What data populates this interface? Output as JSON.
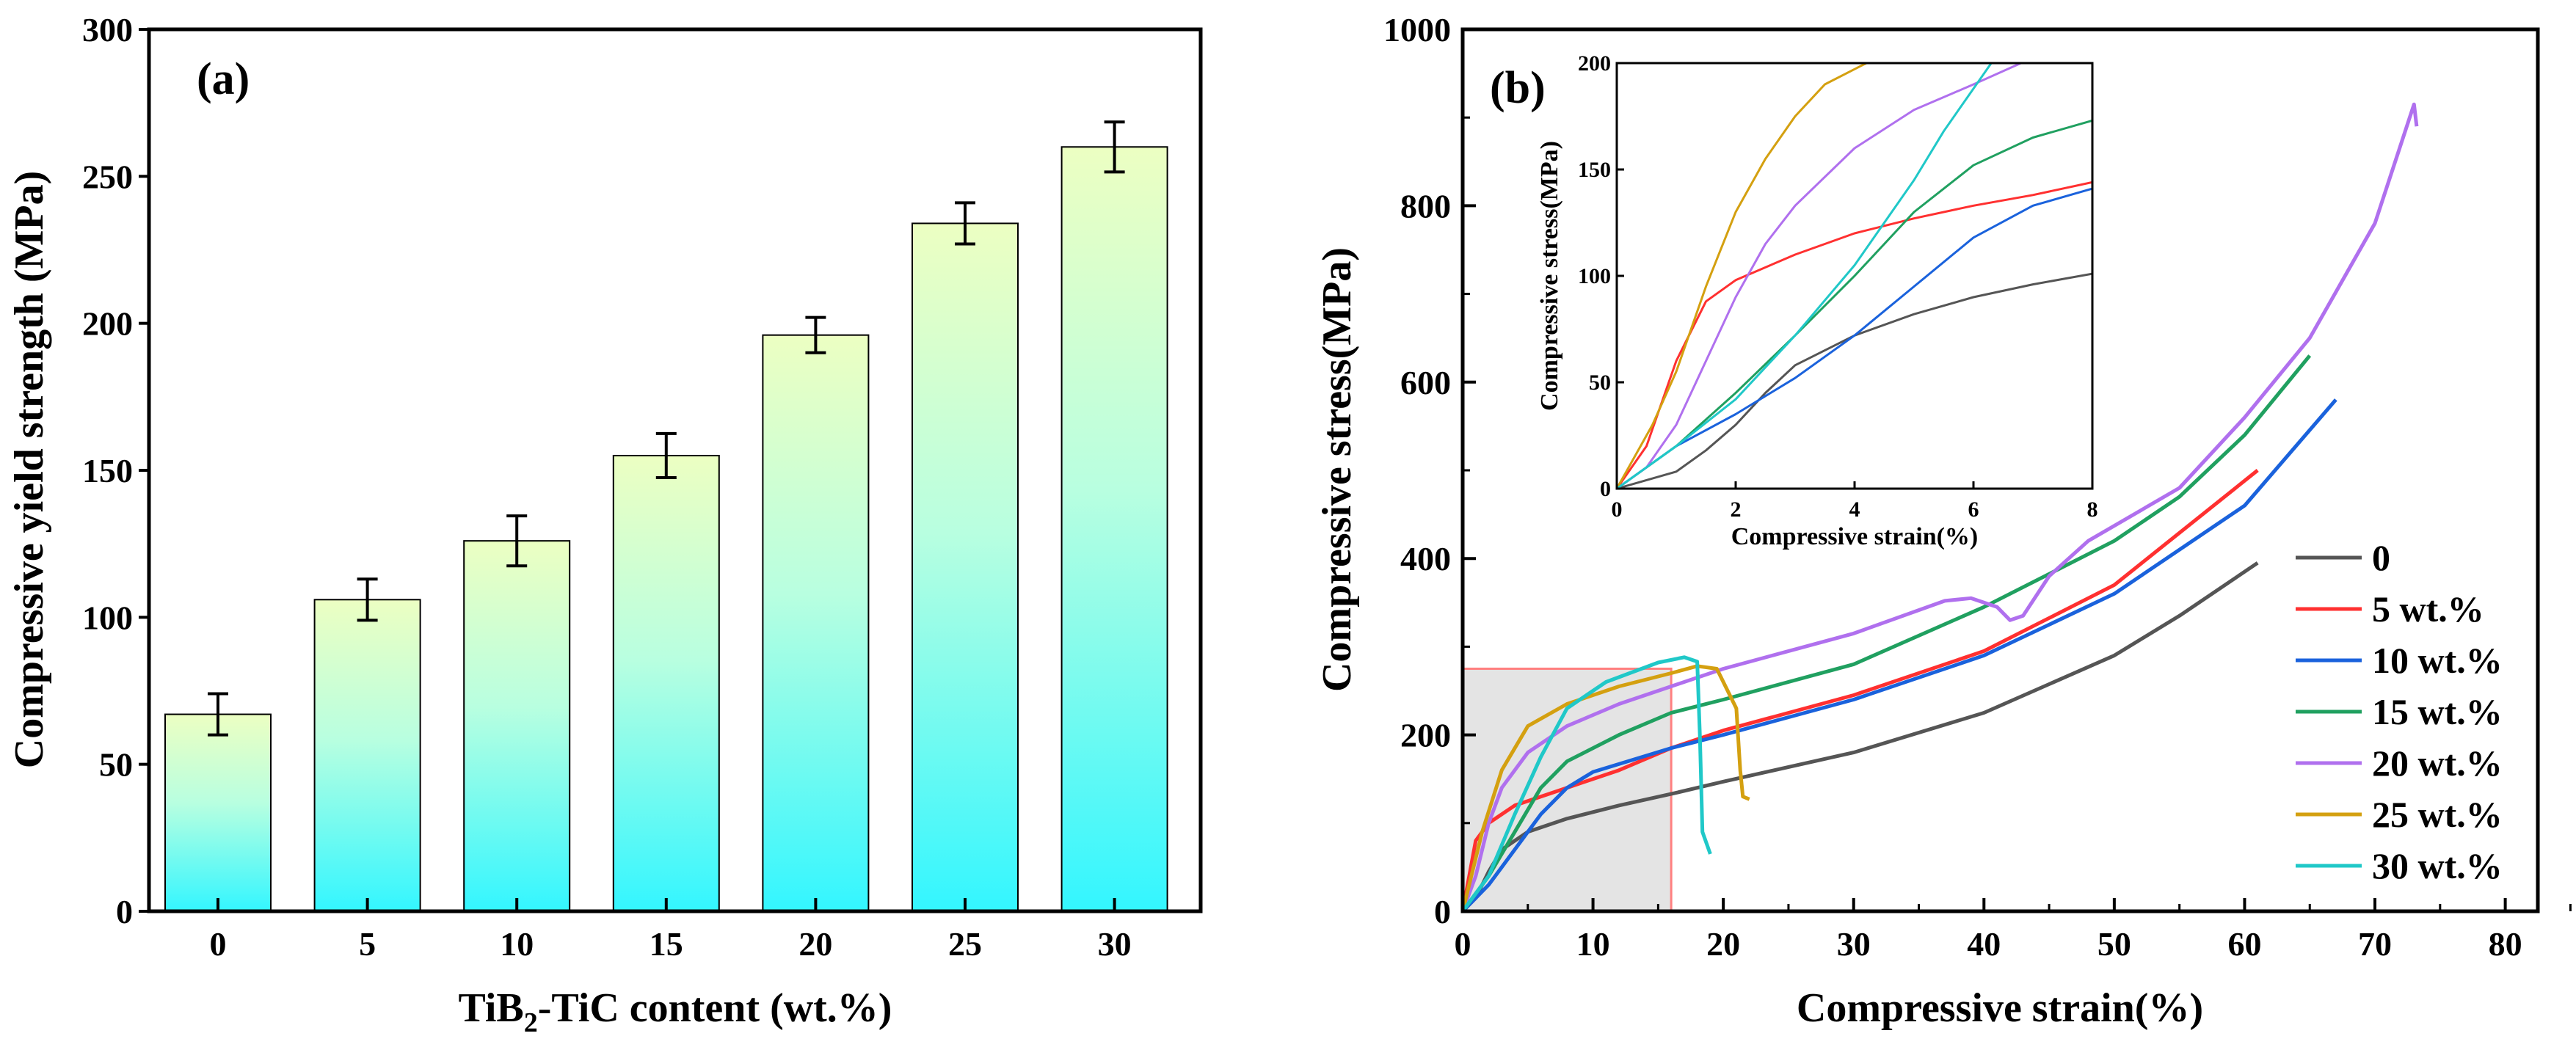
{
  "chart_data": [
    {
      "type": "bar",
      "panel_label": "(a)",
      "title": "",
      "xlabel_parts": [
        "TiB",
        "2",
        "-TiC content (wt.%)"
      ],
      "xlabel": "TiB2-TiC content (wt.%)",
      "ylabel": "Compressive yield strength (MPa)",
      "categories": [
        "0",
        "5",
        "10",
        "15",
        "20",
        "25",
        "30"
      ],
      "values": [
        67,
        106,
        126,
        155,
        196,
        234,
        260
      ],
      "errors": [
        7,
        7,
        8.5,
        7.5,
        6,
        7,
        8.5
      ],
      "ylim": [
        0,
        300
      ],
      "yticks": [
        "0",
        "50",
        "100",
        "150",
        "200",
        "250",
        "300"
      ],
      "grid": false,
      "colors": {
        "bar_top": "#ecffc2",
        "bar_mid": "#b8ffe0",
        "bar_bottom": "#33f6ff"
      }
    },
    {
      "type": "line",
      "panel_label": "(b)",
      "xlabel": "Compressive strain(%)",
      "ylabel": "Compressive stress(MPa)",
      "xlim": [
        0,
        82.5
      ],
      "ylim": [
        0,
        1000
      ],
      "xticks": [
        "0",
        "10",
        "20",
        "30",
        "40",
        "50",
        "60",
        "70",
        "80"
      ],
      "yticks": [
        "0",
        "200",
        "400",
        "600",
        "800",
        "1000"
      ],
      "legend_position": "right",
      "highlight_region": {
        "x": [
          0,
          16
        ],
        "y": [
          0,
          275
        ],
        "color": "#ff8080"
      },
      "series": [
        {
          "name": "0",
          "color": "#555555",
          "x": [
            0,
            1,
            2,
            3,
            5,
            8,
            12,
            16,
            20,
            30,
            40,
            50,
            55,
            61
          ],
          "y": [
            0,
            15,
            45,
            70,
            90,
            105,
            120,
            133,
            147,
            180,
            225,
            290,
            335,
            395
          ]
        },
        {
          "name": "5 wt.%",
          "color": "#ff3030",
          "x": [
            0,
            0.5,
            1,
            2,
            4,
            6,
            8,
            12,
            16,
            20,
            30,
            40,
            50,
            61
          ],
          "y": [
            0,
            40,
            80,
            100,
            120,
            130,
            140,
            160,
            185,
            205,
            245,
            295,
            370,
            500
          ]
        },
        {
          "name": "10 wt.%",
          "color": "#1a62dc",
          "x": [
            0,
            1,
            2,
            3,
            4,
            6,
            8,
            10,
            16,
            20,
            30,
            40,
            50,
            60,
            67
          ],
          "y": [
            0,
            15,
            30,
            50,
            70,
            110,
            140,
            158,
            185,
            200,
            240,
            290,
            360,
            460,
            580
          ]
        },
        {
          "name": "15 wt.%",
          "color": "#20a060",
          "x": [
            0,
            2,
            4,
            6,
            8,
            12,
            16,
            20,
            30,
            40,
            50,
            55,
            60,
            65
          ],
          "y": [
            0,
            40,
            90,
            140,
            170,
            200,
            225,
            240,
            280,
            345,
            420,
            470,
            540,
            630
          ]
        },
        {
          "name": "20 wt.%",
          "color": "#b070ee",
          "x": [
            0,
            1,
            2,
            3,
            5,
            8,
            12,
            16,
            20,
            30,
            37,
            39,
            41,
            42,
            43,
            45,
            48,
            55,
            60,
            65,
            70,
            73,
            73.2
          ],
          "y": [
            0,
            40,
            100,
            140,
            180,
            210,
            235,
            255,
            275,
            315,
            352,
            355,
            345,
            330,
            335,
            380,
            420,
            480,
            560,
            650,
            780,
            915,
            890
          ]
        },
        {
          "name": "25 wt.%",
          "color": "#d4a010",
          "x": [
            0,
            0.5,
            1.5,
            3,
            5,
            8,
            12,
            16,
            18,
            19.5,
            21,
            21.3,
            21.5,
            22
          ],
          "y": [
            0,
            30,
            90,
            160,
            210,
            235,
            255,
            270,
            278,
            275,
            230,
            160,
            130,
            127
          ]
        },
        {
          "name": "30 wt.%",
          "color": "#20c8c8",
          "x": [
            0,
            2,
            4,
            6,
            8,
            11,
            15,
            17,
            18,
            18.2,
            18.4,
            19
          ],
          "y": [
            0,
            40,
            110,
            175,
            230,
            260,
            282,
            288,
            283,
            200,
            90,
            65
          ]
        }
      ],
      "inset": {
        "xlabel": "Compressive strain(%)",
        "ylabel": "Compressive stress(MPa)",
        "xlim": [
          0,
          8
        ],
        "ylim": [
          0,
          200
        ],
        "xticks": [
          "0",
          "2",
          "4",
          "6",
          "8"
        ],
        "yticks": [
          "0",
          "50",
          "100",
          "150",
          "200"
        ],
        "series": [
          {
            "name": "0",
            "x": [
              0,
              1,
              1.5,
              2,
              2.5,
              3,
              4,
              5,
              6,
              7,
              8
            ],
            "y": [
              0,
              8,
              18,
              30,
              45,
              58,
              72,
              82,
              90,
              96,
              101
            ]
          },
          {
            "name": "5 wt.%",
            "x": [
              0,
              0.5,
              1,
              1.5,
              2,
              3,
              4,
              5,
              6,
              7,
              8
            ],
            "y": [
              0,
              20,
              60,
              88,
              98,
              110,
              120,
              127,
              133,
              138,
              144
            ]
          },
          {
            "name": "10 wt.%",
            "x": [
              0,
              1,
              2,
              3,
              4,
              5,
              6,
              7,
              8
            ],
            "y": [
              0,
              20,
              35,
              52,
              72,
              95,
              118,
              133,
              141
            ]
          },
          {
            "name": "15 wt.%",
            "x": [
              0,
              1,
              2,
              3,
              4,
              5,
              6,
              7,
              8
            ],
            "y": [
              0,
              20,
              45,
              72,
              100,
              130,
              152,
              165,
              173
            ]
          },
          {
            "name": "20 wt.%",
            "x": [
              0,
              0.5,
              1,
              1.5,
              2,
              2.5,
              3,
              4,
              5,
              6,
              6.8
            ],
            "y": [
              0,
              10,
              30,
              60,
              90,
              115,
              133,
              160,
              178,
              190,
              200
            ]
          },
          {
            "name": "25 wt.%",
            "x": [
              0,
              0.3,
              0.6,
              1,
              1.5,
              2,
              2.5,
              3,
              3.5,
              4.2
            ],
            "y": [
              0,
              15,
              30,
              55,
              95,
              130,
              155,
              175,
              190,
              200
            ]
          },
          {
            "name": "30 wt.%",
            "x": [
              0,
              1,
              2,
              3,
              4,
              5,
              5.5,
              6.3
            ],
            "y": [
              0,
              20,
              42,
              72,
              105,
              145,
              168,
              200
            ]
          }
        ]
      }
    }
  ]
}
